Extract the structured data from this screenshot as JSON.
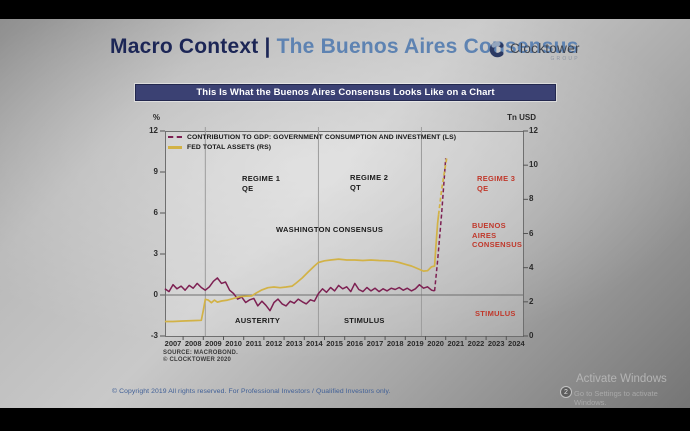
{
  "colors": {
    "navy_title": "#1c2656",
    "blue_title": "#5e83b2",
    "banner_bg": "#3b4173",
    "annotation_black": "#1a1a1a",
    "annotation_red": "#c0382b",
    "footer_blue": "#3e5e96",
    "purple_series": "#7d2052",
    "gold_series": "#d2b246",
    "logo_navy": "#2c3a63"
  },
  "header": {
    "title_bold": "Macro Context |",
    "title_light": " The Buenos Aires Consensus",
    "logo_name": "Clocktower",
    "logo_sub": "GROUP"
  },
  "banner": {
    "text": "This Is What the Buenos Aires Consensus Looks Like on a Chart"
  },
  "source": {
    "line1": "SOURCE: MACROBOND.",
    "line2": "© CLOCKTOWER 2020"
  },
  "footer": {
    "text": "© Copyright 2019 All rights reserved. For Professional Investors / Qualified Investors only."
  },
  "watermark": {
    "title": "Activate Windows",
    "subtitle": "Go to Settings to activate Windows.",
    "badge": "2"
  },
  "chart_data": {
    "type": "line",
    "title": "This Is What the Buenos Aires Consensus Looks Like on a Chart",
    "left_axis": {
      "label": "%",
      "ticks": [
        12,
        9,
        6,
        3,
        0,
        -3
      ],
      "range": [
        -3,
        12
      ]
    },
    "right_axis": {
      "label": "Tn USD",
      "ticks": [
        12,
        10,
        8,
        6,
        4,
        2,
        0
      ],
      "range": [
        0,
        12
      ]
    },
    "x_axis": {
      "labels": [
        "2007",
        "2008",
        "2009",
        "2010",
        "2011",
        "2012",
        "2013",
        "2014",
        "2015",
        "2016",
        "2017",
        "2018",
        "2019",
        "2020",
        "2021",
        "2022",
        "2023",
        "2024"
      ],
      "range": [
        2006.6,
        2024.35
      ]
    },
    "grid": "regime-dividers-only",
    "regime_boundaries_x": [
      2008.6,
      2014.2,
      2019.3
    ],
    "legend_position": "top-left-inside",
    "legend": [
      {
        "label": "CONTRIBUTION TO GDP: GOVERNMENT CONSUMPTION AND INVESTMENT (LS)",
        "color": "#7d2052",
        "style": "dashed"
      },
      {
        "label": "FED TOTAL ASSETS (RS)",
        "color": "#d2b246",
        "style": "solid"
      }
    ],
    "series": [
      {
        "name": "CONTRIBUTION TO GDP: GOVERNMENT CONSUMPTION AND INVESTMENT",
        "axis": "left",
        "unit": "%",
        "color": "#7d2052",
        "width": 1.5,
        "solid": [
          [
            2006.6,
            0.45
          ],
          [
            2006.8,
            0.25
          ],
          [
            2007.0,
            0.75
          ],
          [
            2007.2,
            0.45
          ],
          [
            2007.4,
            0.65
          ],
          [
            2007.6,
            0.35
          ],
          [
            2007.8,
            0.7
          ],
          [
            2008.0,
            0.5
          ],
          [
            2008.2,
            0.85
          ],
          [
            2008.4,
            0.55
          ],
          [
            2008.6,
            0.35
          ],
          [
            2008.8,
            0.6
          ],
          [
            2009.0,
            1.0
          ],
          [
            2009.2,
            1.25
          ],
          [
            2009.4,
            0.85
          ],
          [
            2009.6,
            0.95
          ],
          [
            2009.8,
            0.35
          ],
          [
            2010.0,
            0.1
          ],
          [
            2010.2,
            -0.3
          ],
          [
            2010.4,
            -0.15
          ],
          [
            2010.6,
            -0.55
          ],
          [
            2010.8,
            -0.35
          ],
          [
            2011.0,
            -0.25
          ],
          [
            2011.2,
            -0.8
          ],
          [
            2011.4,
            -0.45
          ],
          [
            2011.6,
            -0.75
          ],
          [
            2011.8,
            -1.15
          ],
          [
            2012.0,
            -0.55
          ],
          [
            2012.2,
            -0.3
          ],
          [
            2012.4,
            -0.65
          ],
          [
            2012.6,
            -0.8
          ],
          [
            2012.8,
            -0.45
          ],
          [
            2013.0,
            -0.6
          ],
          [
            2013.2,
            -0.3
          ],
          [
            2013.4,
            -0.5
          ],
          [
            2013.6,
            -0.65
          ],
          [
            2013.8,
            -0.35
          ],
          [
            2014.0,
            -0.45
          ],
          [
            2014.2,
            0.1
          ],
          [
            2014.4,
            0.45
          ],
          [
            2014.6,
            0.2
          ],
          [
            2014.8,
            0.55
          ],
          [
            2015.0,
            0.3
          ],
          [
            2015.2,
            0.7
          ],
          [
            2015.4,
            0.45
          ],
          [
            2015.6,
            0.6
          ],
          [
            2015.8,
            0.25
          ],
          [
            2016.0,
            0.85
          ],
          [
            2016.2,
            0.4
          ],
          [
            2016.4,
            0.25
          ],
          [
            2016.6,
            0.55
          ],
          [
            2016.8,
            0.3
          ],
          [
            2017.0,
            0.5
          ],
          [
            2017.2,
            0.25
          ],
          [
            2017.4,
            0.45
          ],
          [
            2017.6,
            0.3
          ],
          [
            2017.8,
            0.5
          ],
          [
            2018.0,
            0.4
          ],
          [
            2018.2,
            0.55
          ],
          [
            2018.4,
            0.35
          ],
          [
            2018.6,
            0.5
          ],
          [
            2018.8,
            0.3
          ],
          [
            2019.0,
            0.45
          ],
          [
            2019.2,
            0.75
          ],
          [
            2019.4,
            0.5
          ],
          [
            2019.6,
            0.6
          ],
          [
            2019.8,
            0.35
          ],
          [
            2019.95,
            0.3
          ]
        ],
        "dashed": [
          [
            2019.95,
            0.3
          ],
          [
            2020.1,
            2.5
          ],
          [
            2020.3,
            6.0
          ],
          [
            2020.5,
            10.0
          ]
        ]
      },
      {
        "name": "FED TOTAL ASSETS",
        "axis": "right",
        "unit": "Tn USD",
        "color": "#d2b246",
        "width": 1.7,
        "solid": [
          [
            2006.6,
            0.85
          ],
          [
            2007.0,
            0.85
          ],
          [
            2007.5,
            0.88
          ],
          [
            2008.0,
            0.9
          ],
          [
            2008.4,
            0.92
          ],
          [
            2008.5,
            1.5
          ],
          [
            2008.6,
            2.15
          ],
          [
            2008.75,
            2.1
          ],
          [
            2008.9,
            1.95
          ],
          [
            2009.05,
            2.1
          ],
          [
            2009.2,
            1.98
          ],
          [
            2009.4,
            2.05
          ],
          [
            2009.7,
            2.1
          ],
          [
            2010.0,
            2.2
          ],
          [
            2010.3,
            2.3
          ],
          [
            2010.6,
            2.33
          ],
          [
            2010.9,
            2.35
          ],
          [
            2011.1,
            2.5
          ],
          [
            2011.4,
            2.7
          ],
          [
            2011.7,
            2.83
          ],
          [
            2012.0,
            2.87
          ],
          [
            2012.3,
            2.83
          ],
          [
            2012.6,
            2.87
          ],
          [
            2012.9,
            2.92
          ],
          [
            2013.1,
            3.1
          ],
          [
            2013.4,
            3.4
          ],
          [
            2013.7,
            3.75
          ],
          [
            2014.0,
            4.1
          ],
          [
            2014.2,
            4.3
          ],
          [
            2014.5,
            4.4
          ],
          [
            2014.8,
            4.45
          ],
          [
            2015.2,
            4.5
          ],
          [
            2015.6,
            4.45
          ],
          [
            2016.0,
            4.45
          ],
          [
            2016.4,
            4.42
          ],
          [
            2016.8,
            4.45
          ],
          [
            2017.2,
            4.42
          ],
          [
            2017.6,
            4.4
          ],
          [
            2017.9,
            4.38
          ],
          [
            2018.2,
            4.3
          ],
          [
            2018.5,
            4.2
          ],
          [
            2018.8,
            4.1
          ],
          [
            2019.1,
            3.95
          ],
          [
            2019.4,
            3.8
          ],
          [
            2019.6,
            3.82
          ],
          [
            2019.8,
            4.05
          ],
          [
            2019.95,
            4.1
          ],
          [
            2020.0,
            5.0
          ],
          [
            2020.1,
            6.6
          ],
          [
            2020.15,
            7.1
          ]
        ],
        "dashed": [
          [
            2020.15,
            7.1
          ],
          [
            2020.3,
            8.6
          ],
          [
            2020.45,
            9.7
          ],
          [
            2020.55,
            10.4
          ]
        ]
      }
    ],
    "annotations": {
      "regime1": "REGIME 1\nQE",
      "regime2": "REGIME 2\nQT",
      "regime3": "REGIME 3\nQE",
      "washington": "WASHINGTON CONSENSUS",
      "austerity": "AUSTERITY",
      "stimulus_black": "STIMULUS",
      "buenos": "BUENOS\nAIRES\nCONSENSUS",
      "stimulus_red": "STIMULUS"
    }
  }
}
